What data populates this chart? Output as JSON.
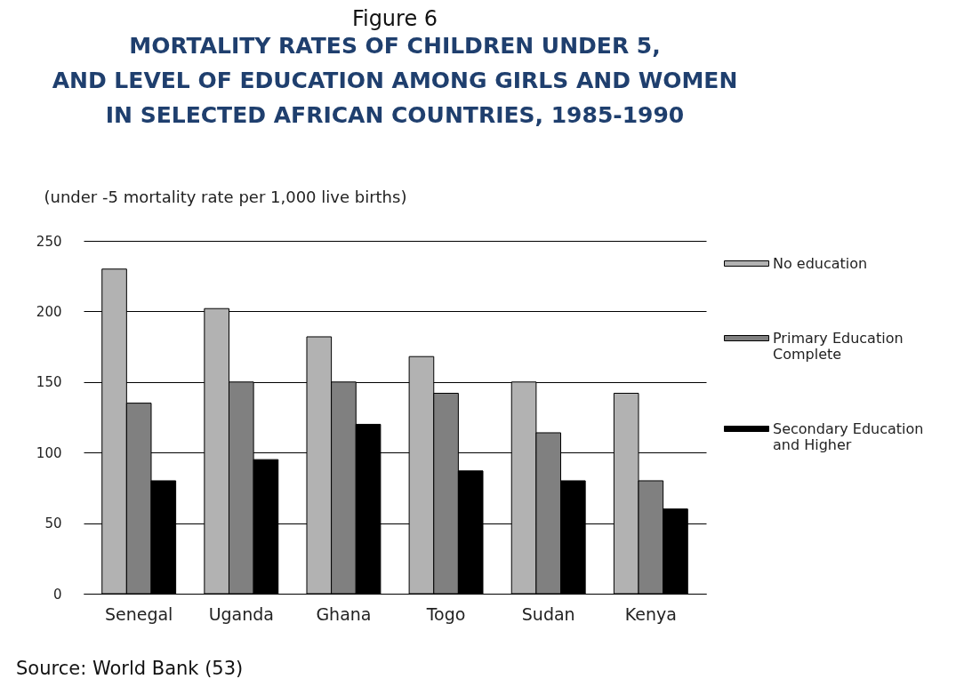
{
  "chart_data": {
    "type": "bar",
    "title": "Figure 6",
    "subtitle": "MORTALITY RATES OF CHILDREN UNDER 5,\nAND LEVEL OF EDUCATION AMONG GIRLS AND  WOMEN\nIN SELECTED AFRICAN COUNTRIES, 1985-1990",
    "ylabel": "(under -5 mortality rate per 1,000 live births)",
    "categories": [
      "Senegal",
      "Uganda",
      "Ghana",
      "Togo",
      "Sudan",
      "Kenya"
    ],
    "series": [
      {
        "name": "No education",
        "color": "#b2b2b2",
        "values": [
          230,
          202,
          182,
          168,
          150,
          142
        ]
      },
      {
        "name": "Primary Education Complete",
        "color": "#808080",
        "values": [
          135,
          150,
          150,
          142,
          114,
          80
        ]
      },
      {
        "name": "Secondary Education and Higher",
        "color": "#000000",
        "values": [
          80,
          95,
          120,
          87,
          80,
          60
        ]
      }
    ],
    "ylim": [
      0,
      250
    ],
    "yticks": [
      0,
      50,
      100,
      150,
      200,
      250
    ],
    "grid": "y",
    "legend": "right",
    "annotations": [
      "Source: World Bank  (53)"
    ]
  }
}
